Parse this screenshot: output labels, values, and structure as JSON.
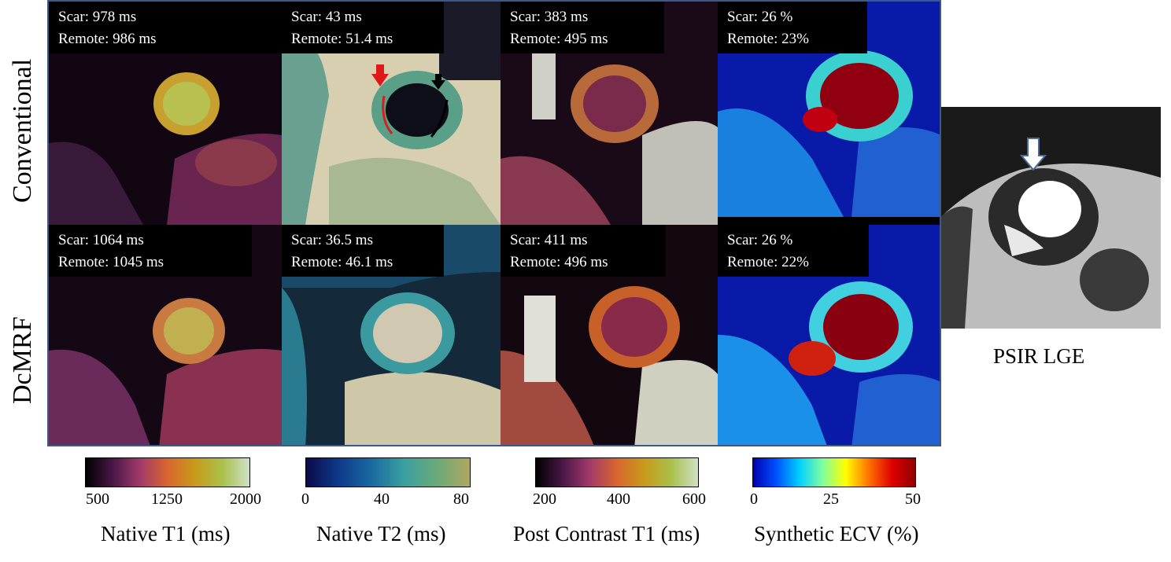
{
  "rows": [
    "Conventional",
    "DcMRF"
  ],
  "panels": {
    "conv_t1": {
      "scar": "Scar: 978 ms",
      "remote": "Remote: 986 ms"
    },
    "conv_t2": {
      "scar": "Scar: 43 ms",
      "remote": "Remote: 51.4 ms"
    },
    "conv_pc": {
      "scar": "Scar: 383 ms",
      "remote": "Remote: 495 ms"
    },
    "conv_ecv": {
      "scar": "Scar: 26 %",
      "remote": "Remote: 23%"
    },
    "mrf_t1": {
      "scar": "Scar: 1064 ms",
      "remote": "Remote: 1045 ms"
    },
    "mrf_t2": {
      "scar": "Scar: 36.5 ms",
      "remote": "Remote: 46.1 ms"
    },
    "mrf_pc": {
      "scar": "Scar: 411 ms",
      "remote": "Remote: 496 ms"
    },
    "mrf_ecv": {
      "scar": "Scar: 26 %",
      "remote": "Remote: 22%"
    }
  },
  "colorbars": [
    {
      "title": "Native T1 (ms)",
      "ticks": [
        "500",
        "1250",
        "2000"
      ],
      "colors": [
        "#000000",
        "#4a1848",
        "#a23a6a",
        "#d8662e",
        "#c89a1a",
        "#a9c04a",
        "#cfe0c8"
      ]
    },
    {
      "title": "Native T2 (ms)",
      "ticks": [
        "0",
        "40",
        "80"
      ],
      "colors": [
        "#0a0a4a",
        "#0e3a8a",
        "#1a6aa0",
        "#3aa0a0",
        "#6aaa78",
        "#b0a860"
      ]
    },
    {
      "title": "Post Contrast T1 (ms)",
      "ticks": [
        "200",
        "400",
        "600"
      ],
      "colors": [
        "#000000",
        "#4a1848",
        "#a23a6a",
        "#d8662e",
        "#c89a1a",
        "#a9c04a",
        "#cfe0c8"
      ]
    },
    {
      "title": "Synthetic ECV (%)",
      "ticks": [
        "0",
        "25",
        "50"
      ],
      "colors": [
        "#0000b0",
        "#0050ff",
        "#00d0ff",
        "#80ffa0",
        "#ffff00",
        "#ff7000",
        "#e00000",
        "#900000"
      ]
    }
  ],
  "lge_caption": "PSIR LGE"
}
